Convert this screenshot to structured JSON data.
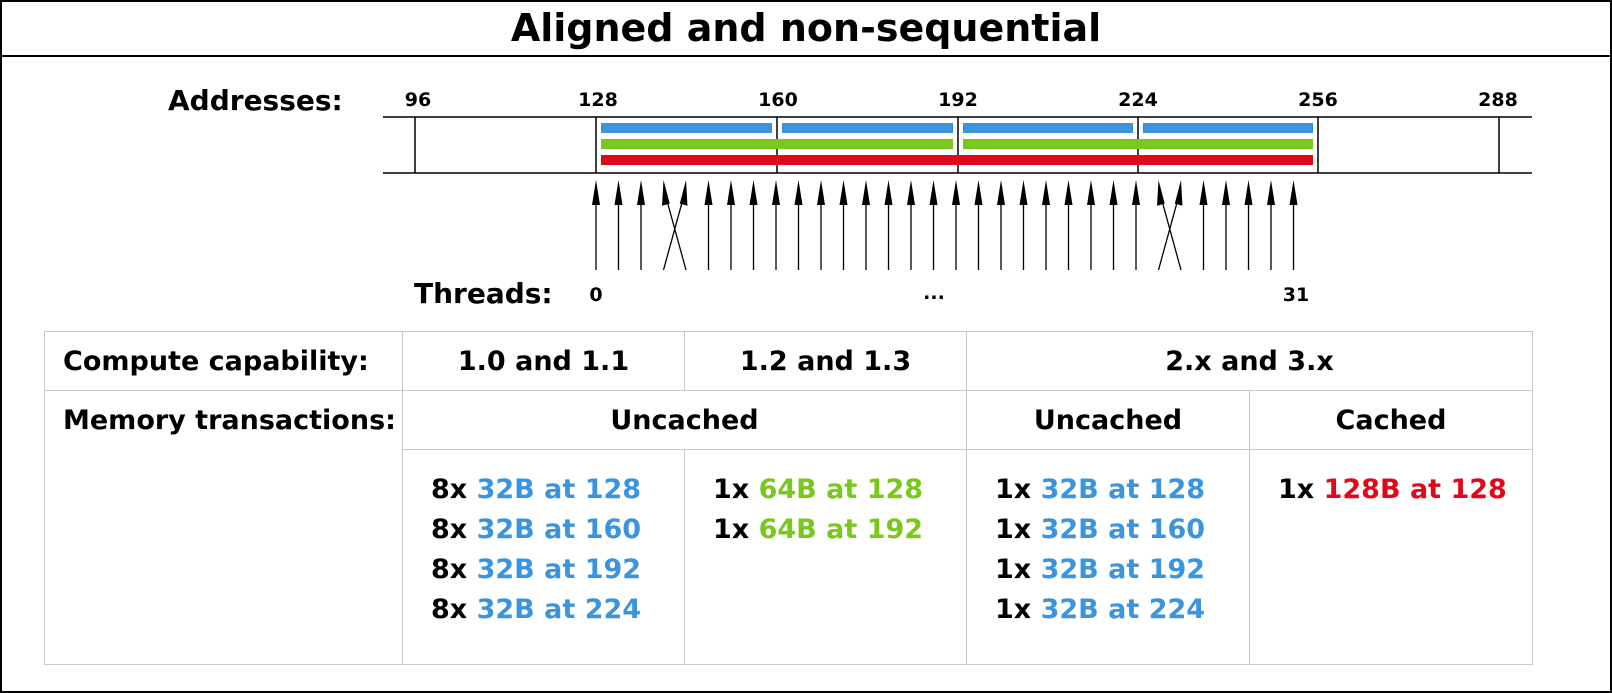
{
  "title": "Aligned and non-sequential",
  "addresses_label": "Addresses:",
  "threads_label": "Threads:",
  "address_ticks": [
    "96",
    "128",
    "160",
    "192",
    "224",
    "256",
    "288"
  ],
  "thread_labels": {
    "first": "0",
    "middle": "...",
    "last": "31"
  },
  "colors": {
    "blue": "#3b94dc",
    "green": "#78c81e",
    "red": "#dc0a1a",
    "grid": "#c8c8c8"
  },
  "table": {
    "row1_header": "Compute capability:",
    "row2_header": "Memory transactions:",
    "cc_1_0": "1.0 and 1.1",
    "cc_1_2": "1.2 and 1.3",
    "cc_2_x": "2.x and 3.x",
    "uncached_1": "Uncached",
    "uncached_2": "Uncached",
    "cached": "Cached",
    "col1_rows": [
      {
        "count": "8x",
        "text": "32B at 128"
      },
      {
        "count": "8x",
        "text": "32B at 160"
      },
      {
        "count": "8x",
        "text": "32B at 192"
      },
      {
        "count": "8x",
        "text": "32B at 224"
      }
    ],
    "col2_rows": [
      {
        "count": "1x",
        "text": "64B at 128"
      },
      {
        "count": "1x",
        "text": "64B at 192"
      }
    ],
    "col3_rows": [
      {
        "count": "1x",
        "text": "32B at 128"
      },
      {
        "count": "1x",
        "text": "32B at 160"
      },
      {
        "count": "1x",
        "text": "32B at 192"
      },
      {
        "count": "1x",
        "text": "32B at 224"
      }
    ],
    "col4_rows": [
      {
        "count": "1x",
        "text": "128B at 128"
      }
    ]
  }
}
